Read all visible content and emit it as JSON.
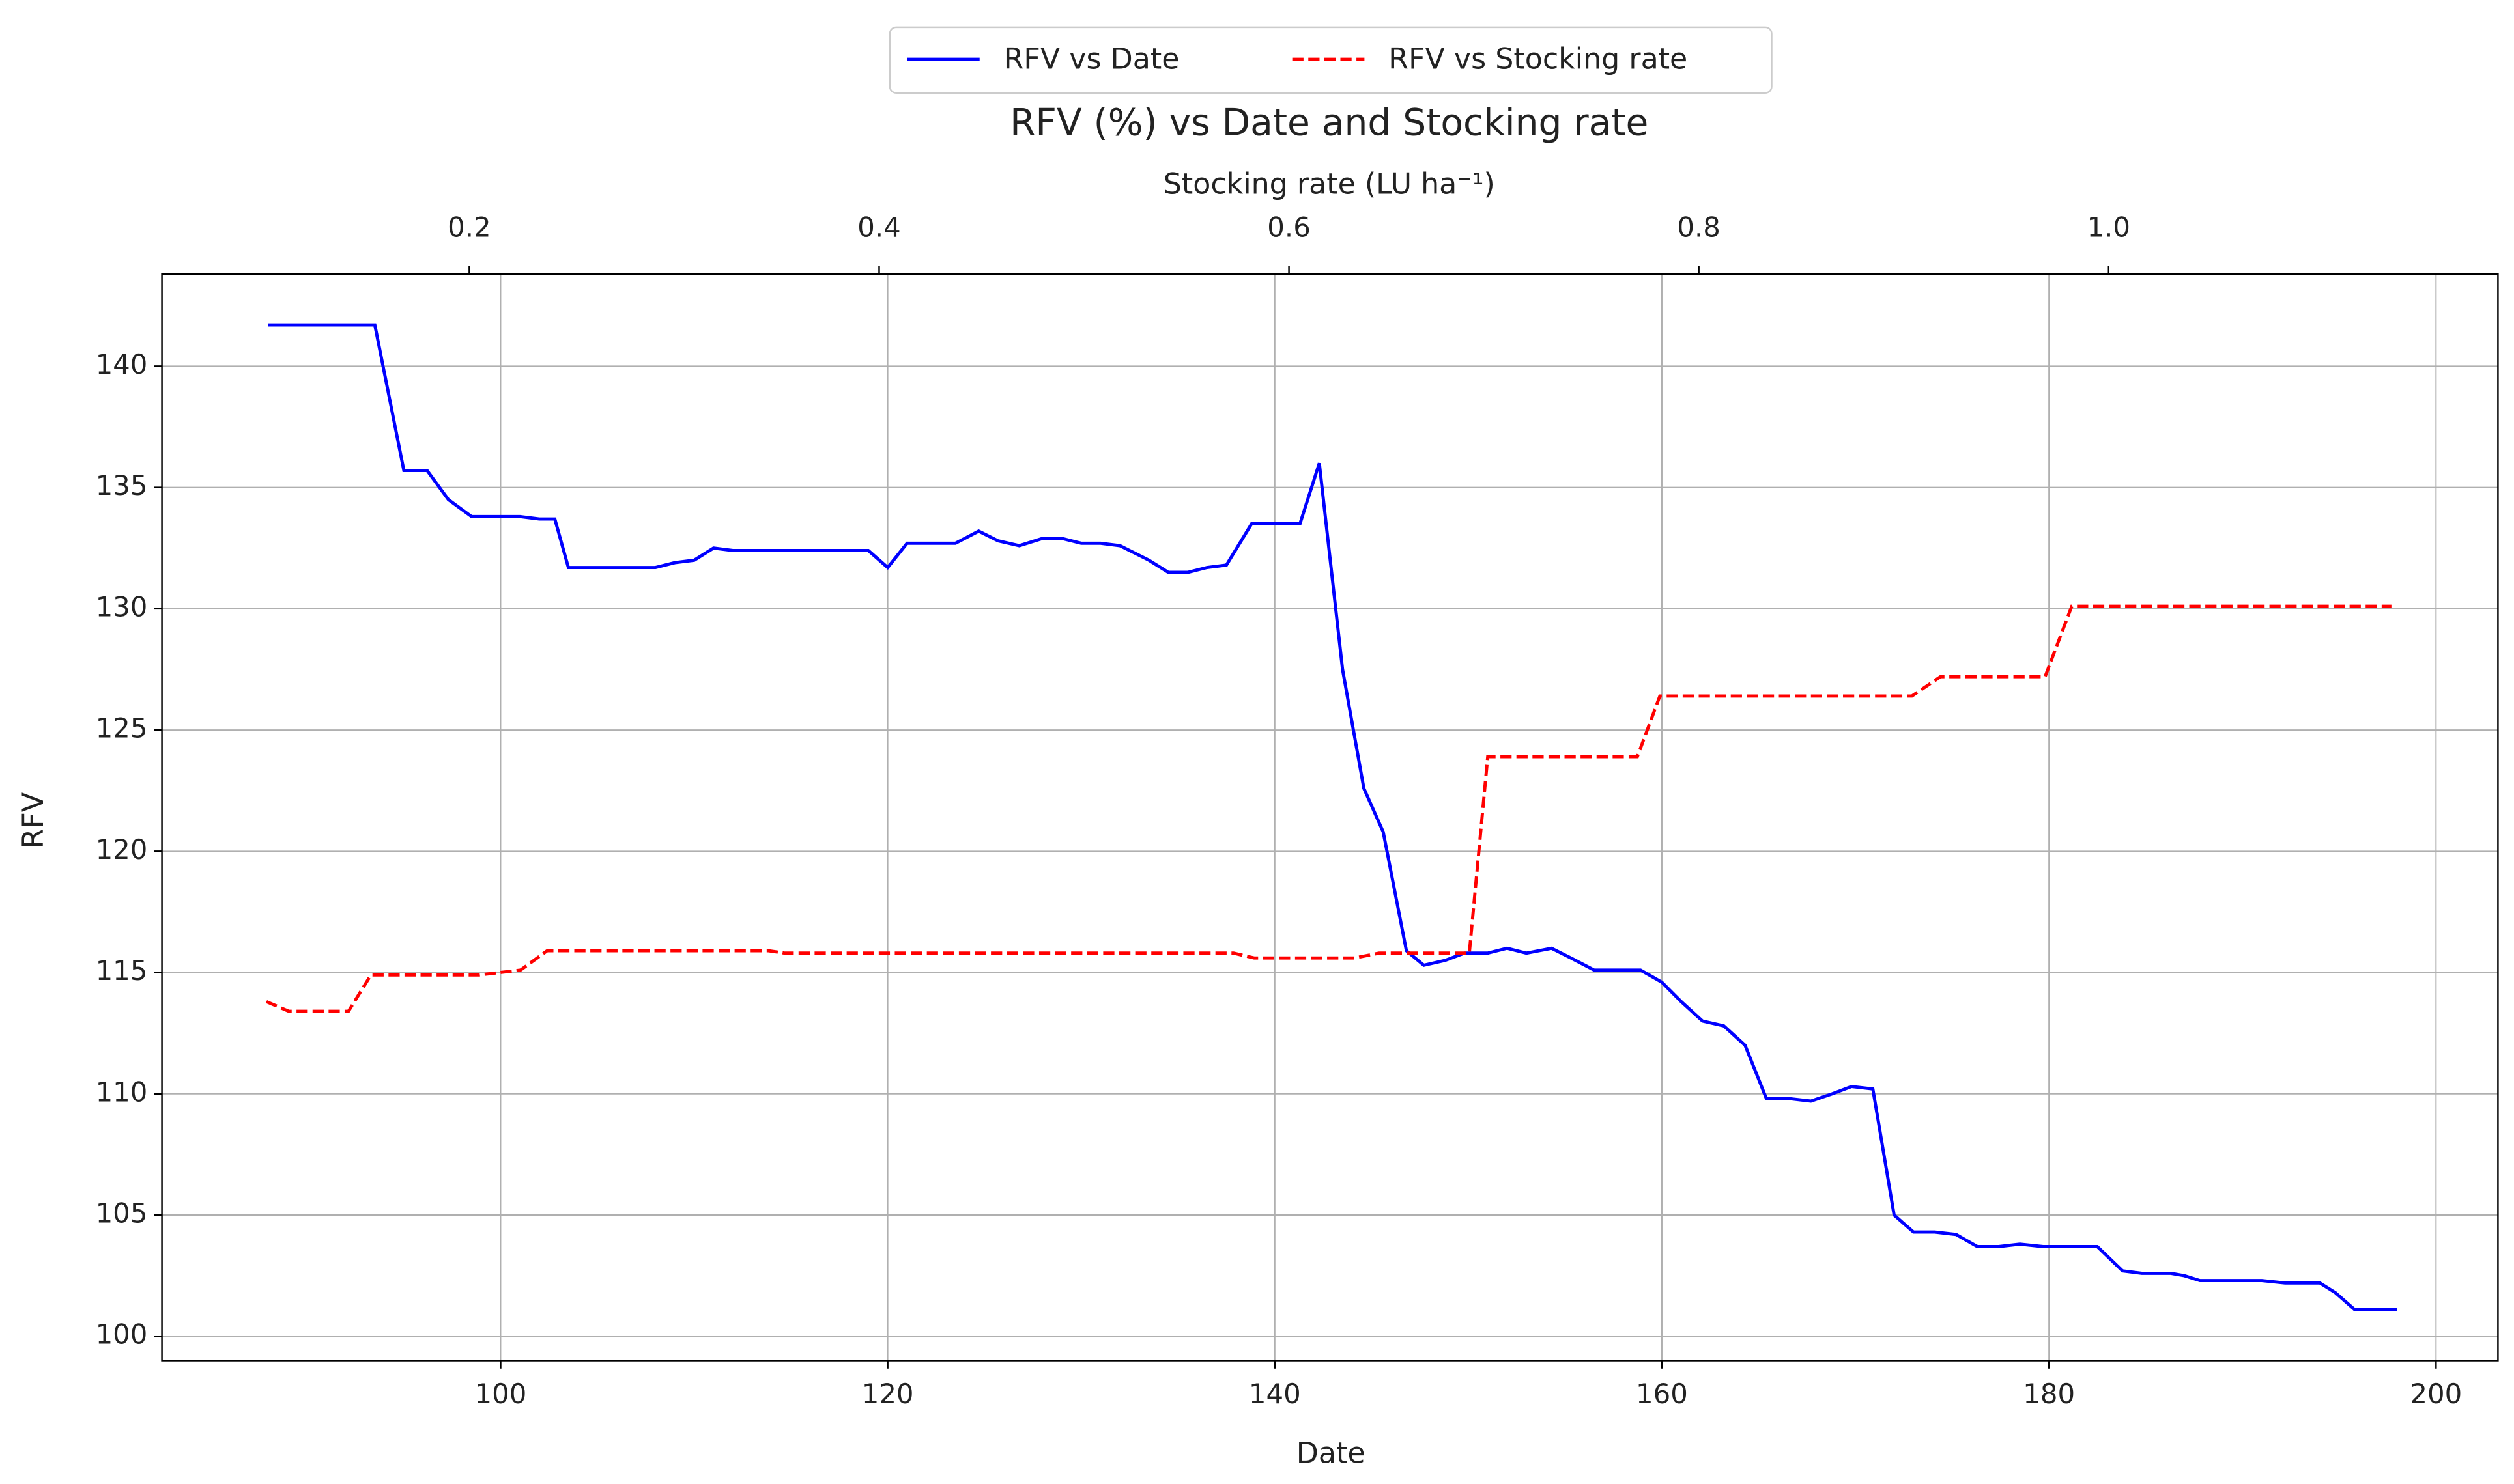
{
  "chart_data": {
    "type": "line",
    "title": "RFV (%) vs Date and Stocking rate",
    "x_label": "Date",
    "x2_label": "Stocking rate (LU ha⁻¹)",
    "y_label": "RFV",
    "xlim": [
      82.5,
      203.2
    ],
    "xticks": [
      100,
      120,
      140,
      160,
      180,
      200
    ],
    "x2lim": [
      0.05,
      1.19
    ],
    "x2ticks": [
      0.2,
      0.4,
      0.6,
      0.8,
      {
        "value": 1.0,
        "label": "1.0"
      }
    ],
    "ylim": [
      99.0,
      143.8
    ],
    "yticks": [
      100,
      105,
      110,
      115,
      120,
      125,
      130,
      135,
      140
    ],
    "grid": true,
    "legend": "top",
    "series": [
      {
        "name": "RFV vs Date",
        "color": "#0000ff",
        "dash": "solid",
        "axis": "x",
        "x": [
          88,
          93.5,
          95,
          96.2,
          97.3,
          98.5,
          101,
          102,
          102.8,
          103.5,
          108,
          109,
          110,
          111,
          112,
          119,
          120,
          121,
          123.5,
          124.7,
          125.7,
          126.8,
          128,
          129,
          130,
          131,
          132,
          133.5,
          134.5,
          135.5,
          136.5,
          137.5,
          138.8,
          141.3,
          142.3,
          143.5,
          144.6,
          145.6,
          146.8,
          147.7,
          148.8,
          149.8,
          151,
          152,
          153,
          154.3,
          155.3,
          156.5,
          158.9,
          160,
          161,
          162.1,
          163.2,
          164.3,
          165.4,
          166.6,
          167.7,
          168.8,
          169.8,
          170.9,
          172,
          173,
          174.1,
          175.2,
          176.3,
          177.4,
          178.5,
          179.7,
          182.5,
          183.8,
          184.8,
          186.3,
          187,
          187.8,
          189.6,
          191,
          192.2,
          194,
          194.8,
          195.8,
          198
        ],
        "values": [
          141.7,
          141.7,
          135.7,
          135.7,
          134.5,
          133.8,
          133.8,
          133.7,
          133.7,
          131.7,
          131.7,
          131.9,
          132,
          132.5,
          132.4,
          132.4,
          131.7,
          132.7,
          132.7,
          133.2,
          132.8,
          132.6,
          132.9,
          132.9,
          132.7,
          132.7,
          132.6,
          132,
          131.5,
          131.5,
          131.7,
          131.8,
          133.5,
          133.5,
          136,
          127.5,
          122.6,
          120.8,
          115.9,
          115.3,
          115.5,
          115.8,
          115.8,
          116,
          115.8,
          116,
          115.6,
          115.1,
          115.1,
          114.6,
          113.8,
          113,
          112.8,
          112,
          109.8,
          109.8,
          109.7,
          110,
          110.3,
          110.2,
          105,
          104.3,
          104.3,
          104.2,
          103.7,
          103.7,
          103.8,
          103.7,
          103.7,
          102.7,
          102.6,
          102.6,
          102.5,
          102.3,
          102.3,
          102.3,
          102.2,
          102.2,
          101.8,
          101.1,
          101.1
        ]
      },
      {
        "name": "RFV vs Stocking rate",
        "color": "#ff0000",
        "dash": "dashed",
        "axis": "x2",
        "x": [
          0.101,
          0.112,
          0.141,
          0.152,
          0.205,
          0.225,
          0.238,
          0.346,
          0.354,
          0.573,
          0.583,
          0.632,
          0.644,
          0.688,
          0.697,
          0.77,
          0.781,
          0.904,
          0.918,
          0.969,
          0.982,
          1.138
        ],
        "values": [
          113.8,
          113.4,
          113.4,
          114.9,
          114.9,
          115.1,
          115.9,
          115.9,
          115.8,
          115.8,
          115.6,
          115.6,
          115.8,
          115.8,
          123.9,
          123.9,
          126.4,
          126.4,
          127.2,
          127.2,
          130.1,
          130.1
        ]
      }
    ]
  }
}
